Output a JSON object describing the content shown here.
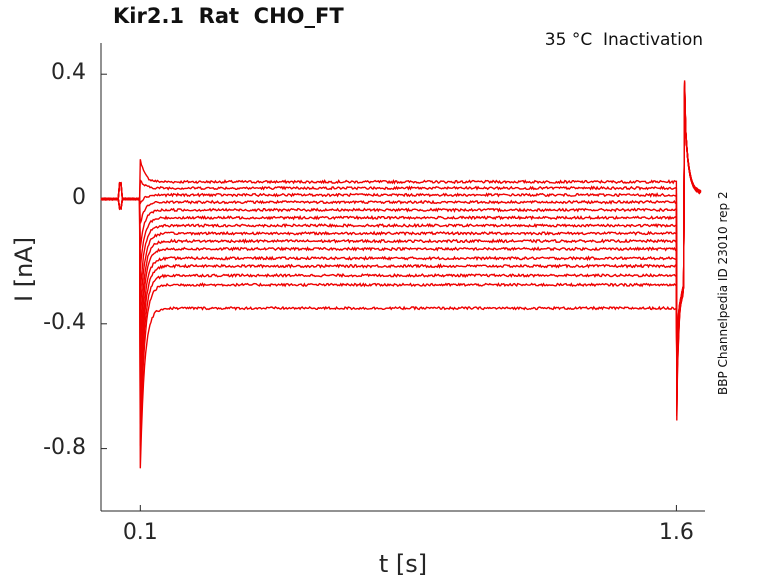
{
  "chart_data": {
    "type": "line",
    "title": "Kir2.1  Rat  CHO_FT",
    "annotation": "35 °C  Inactivation",
    "side_label": "BBP Channelpedia ID 23010 rep 2",
    "xlabel": "t [s]",
    "ylabel": "I [nA]",
    "xlim": [
      -0.01,
      1.68
    ],
    "ylim": [
      -1.0,
      0.5
    ],
    "x_ticks": [
      {
        "value": 0.1,
        "label": "0.1"
      },
      {
        "value": 1.6,
        "label": "1.6"
      }
    ],
    "y_ticks": [
      {
        "value": 0.4,
        "label": "0.4"
      },
      {
        "value": 0,
        "label": "0"
      },
      {
        "value": -0.4,
        "label": "-0.4"
      },
      {
        "value": -0.8,
        "label": "-0.8"
      }
    ],
    "series_color": "#ee0000",
    "sweeps": {
      "count": 15,
      "holding_current": 0.0,
      "step_start": 0.1,
      "step_end": 1.6,
      "recording_end": 1.67,
      "steady_state_levels": [
        0.055,
        0.035,
        0.013,
        -0.01,
        -0.035,
        -0.06,
        -0.085,
        -0.11,
        -0.135,
        -0.16,
        -0.19,
        -0.215,
        -0.245,
        -0.275,
        -0.35
      ],
      "onset_peak_min": -0.86,
      "onset_peak_max": 0.13,
      "step_end_dip": -0.71,
      "tail_level": -0.28,
      "tail_peak": 0.38
    }
  }
}
